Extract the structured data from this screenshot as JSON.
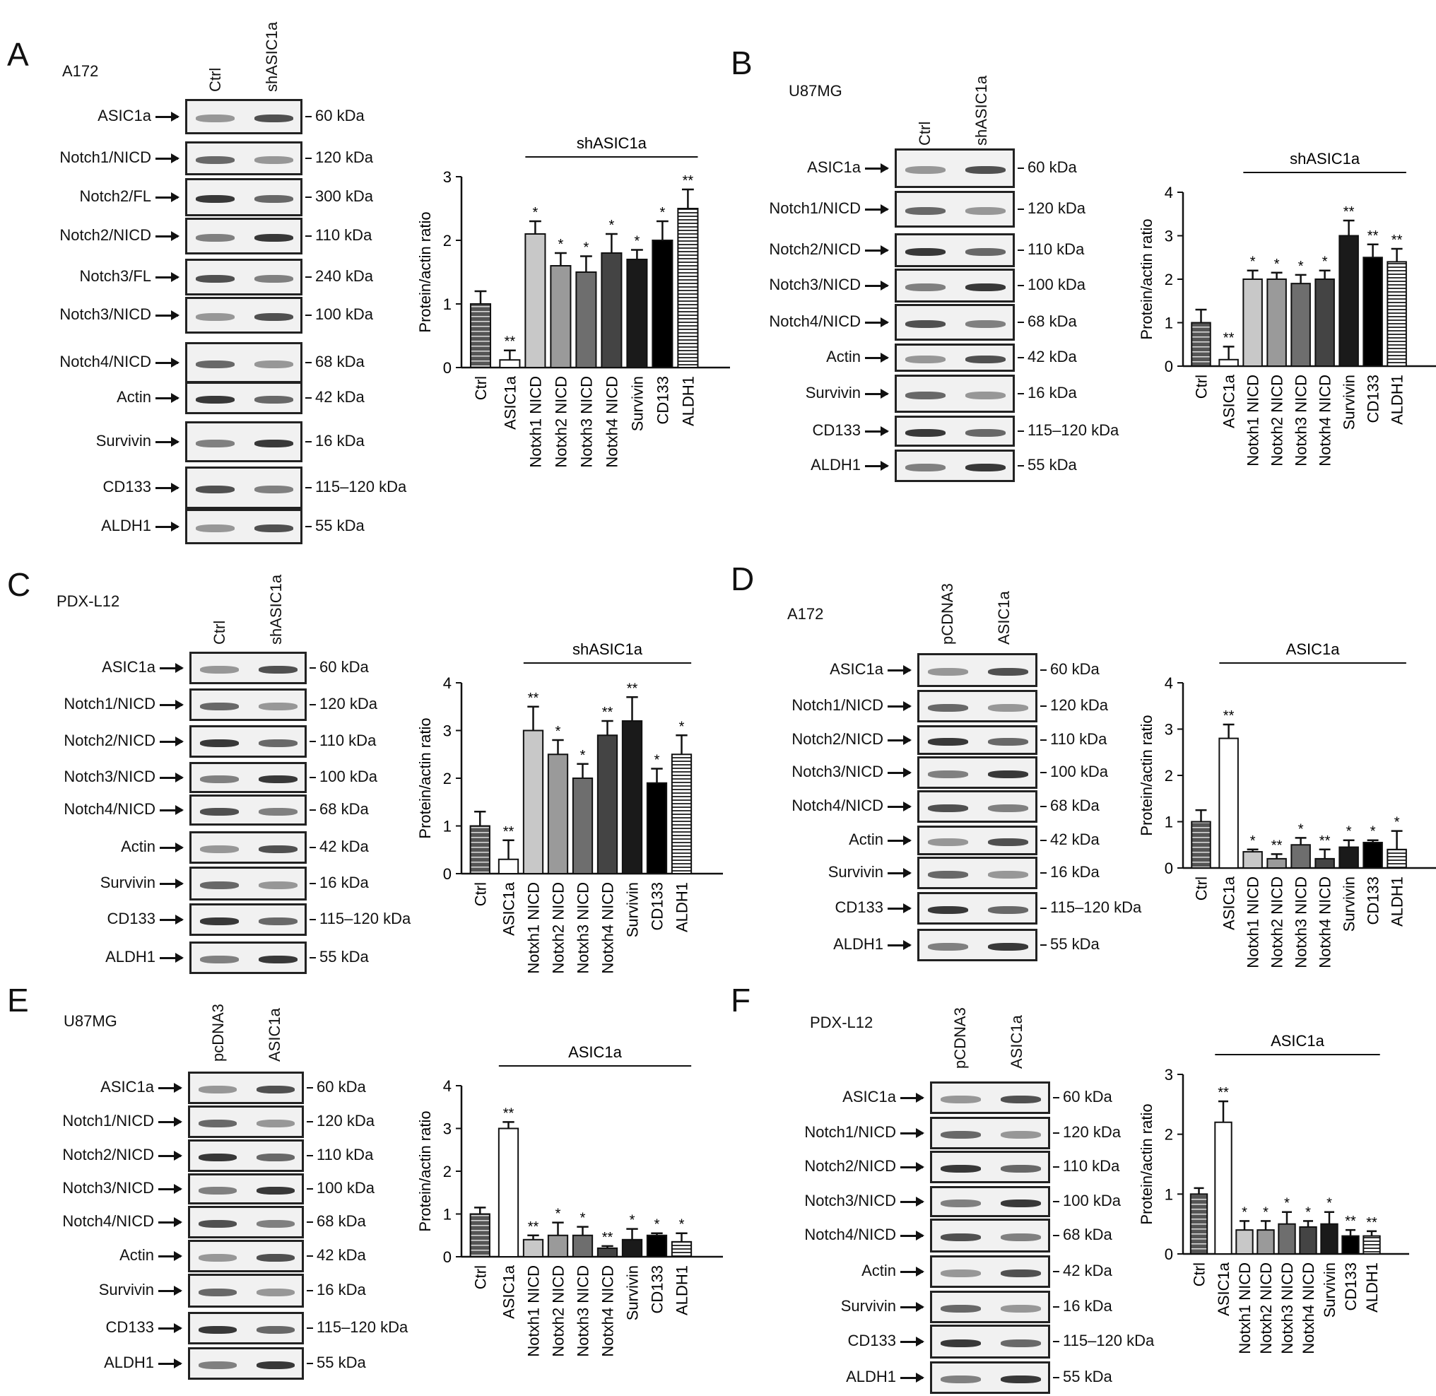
{
  "panels": [
    {
      "letter": "A",
      "cell_line": "A172",
      "lanes": [
        "Ctrl",
        "shASIC1a"
      ],
      "rows": [
        {
          "protein": "ASIC1a",
          "kda": "60 kDa",
          "arrow": true
        },
        {
          "protein": "Notch1/NICD",
          "kda": "120 kDa",
          "arrow": true
        },
        {
          "protein": "Notch2/FL",
          "kda": "300 kDa",
          "arrow": true
        },
        {
          "protein": "Notch2/NICD",
          "kda": "110 kDa",
          "arrow": true
        },
        {
          "protein": "Notch3/FL",
          "kda": "240 kDa",
          "arrow": true
        },
        {
          "protein": "Notch3/NICD",
          "kda": "100 kDa",
          "arrow": true
        },
        {
          "protein": "Notch4/NICD",
          "kda": "68 kDa",
          "arrow": true
        },
        {
          "protein": "Actin",
          "kda": "42 kDa",
          "arrow": true
        },
        {
          "protein": "Survivin",
          "kda": "16 kDa",
          "arrow": true
        },
        {
          "protein": "CD133",
          "kda": "115–120 kDa",
          "arrow": true
        },
        {
          "protein": "ALDH1",
          "kda": "55 kDa",
          "arrow": true
        }
      ]
    },
    {
      "letter": "B",
      "cell_line": "U87MG",
      "lanes": [
        "Ctrl",
        "shASIC1a"
      ],
      "rows": [
        {
          "protein": "ASIC1a",
          "kda": "60 kDa",
          "arrow": true
        },
        {
          "protein": "Notch1/NICD",
          "kda": "120 kDa",
          "arrow": true
        },
        {
          "protein": "Notch2/NICD",
          "kda": "110 kDa",
          "arrow": true
        },
        {
          "protein": "Notch3/NICD",
          "kda": "100 kDa",
          "arrow": true
        },
        {
          "protein": "Notch4/NICD",
          "kda": "68 kDa",
          "arrow": true
        },
        {
          "protein": "Actin",
          "kda": "42 kDa",
          "arrow": true
        },
        {
          "protein": "Survivin",
          "kda": "16 kDa",
          "arrow": true
        },
        {
          "protein": "CD133",
          "kda": "115–120 kDa",
          "arrow": true
        },
        {
          "protein": "ALDH1",
          "kda": "55 kDa",
          "arrow": true
        }
      ]
    },
    {
      "letter": "C",
      "cell_line": "PDX-L12",
      "lanes": [
        "Ctrl",
        "shASIC1a"
      ],
      "rows": [
        {
          "protein": "ASIC1a",
          "kda": "60 kDa",
          "arrow": true
        },
        {
          "protein": "Notch1/NICD",
          "kda": "120 kDa",
          "arrow": true
        },
        {
          "protein": "Notch2/NICD",
          "kda": "110 kDa",
          "arrow": true
        },
        {
          "protein": "Notch3/NICD",
          "kda": "100 kDa",
          "arrow": true
        },
        {
          "protein": "Notch4/NICD",
          "kda": "68 kDa",
          "arrow": true
        },
        {
          "protein": "Actin",
          "kda": "42 kDa",
          "arrow": true
        },
        {
          "protein": "Survivin",
          "kda": "16 kDa",
          "arrow": true
        },
        {
          "protein": "CD133",
          "kda": "115–120 kDa",
          "arrow": true
        },
        {
          "protein": "ALDH1",
          "kda": "55 kDa",
          "arrow": true
        }
      ]
    },
    {
      "letter": "D",
      "cell_line": "A172",
      "lanes": [
        "pCDNA3",
        "ASIC1a"
      ],
      "rows": [
        {
          "protein": "ASIC1a",
          "kda": "60 kDa",
          "arrow": true
        },
        {
          "protein": "Notch1/NICD",
          "kda": "120 kDa",
          "arrow": true
        },
        {
          "protein": "Notch2/NICD",
          "kda": "110 kDa",
          "arrow": true
        },
        {
          "protein": "Notch3/NICD",
          "kda": "100 kDa",
          "arrow": true
        },
        {
          "protein": "Notch4/NICD",
          "kda": "68 kDa",
          "arrow": true
        },
        {
          "protein": "Actin",
          "kda": "42 kDa",
          "arrow": true
        },
        {
          "protein": "Survivin",
          "kda": "16 kDa",
          "arrow": true
        },
        {
          "protein": "CD133",
          "kda": "115–120 kDa",
          "arrow": true
        },
        {
          "protein": "ALDH1",
          "kda": "55 kDa",
          "arrow": true
        }
      ]
    },
    {
      "letter": "E",
      "cell_line": "U87MG",
      "lanes": [
        "pcDNA3",
        "ASIC1a"
      ],
      "rows": [
        {
          "protein": "ASIC1a",
          "kda": "60 kDa",
          "arrow": true
        },
        {
          "protein": "Notch1/NICD",
          "kda": "120 kDa",
          "arrow": true
        },
        {
          "protein": "Notch2/NICD",
          "kda": "110 kDa",
          "arrow": true
        },
        {
          "protein": "Notch3/NICD",
          "kda": "100 kDa",
          "arrow": true
        },
        {
          "protein": "Notch4/NICD",
          "kda": "68 kDa",
          "arrow": true
        },
        {
          "protein": "Actin",
          "kda": "42 kDa",
          "arrow": true
        },
        {
          "protein": "Survivin",
          "kda": "16 kDa",
          "arrow": true
        },
        {
          "protein": "CD133",
          "kda": "115–120 kDa",
          "arrow": true
        },
        {
          "protein": "ALDH1",
          "kda": "55 kDa",
          "arrow": true
        }
      ]
    },
    {
      "letter": "F",
      "cell_line": "PDX-L12",
      "lanes": [
        "pCDNA3",
        "ASIC1a"
      ],
      "rows": [
        {
          "protein": "ASIC1a",
          "kda": "60 kDa",
          "arrow": true
        },
        {
          "protein": "Notch1/NICD",
          "kda": "120 kDa",
          "arrow": true
        },
        {
          "protein": "Notch2/NICD",
          "kda": "110 kDa",
          "arrow": true
        },
        {
          "protein": "Notch3/NICD",
          "kda": "100 kDa",
          "arrow": true
        },
        {
          "protein": "Notch4/NICD",
          "kda": "68 kDa",
          "arrow": true
        },
        {
          "protein": "Actin",
          "kda": "42 kDa",
          "arrow": true
        },
        {
          "protein": "Survivin",
          "kda": "16 kDa",
          "arrow": true
        },
        {
          "protein": "CD133",
          "kda": "115–120 kDa",
          "arrow": true
        },
        {
          "protein": "ALDH1",
          "kda": "55 kDa",
          "arrow": true
        }
      ]
    }
  ],
  "chart_data": [
    {
      "panel": "A",
      "type": "bar",
      "categories": [
        "Ctrl",
        "ASIC1a",
        "Notxh1 NICD",
        "Notxh2 NICD",
        "Notxh3 NICD",
        "Notxh4 NICD",
        "Survivin",
        "CD133",
        "ALDH1"
      ],
      "values": [
        1.0,
        0.12,
        2.1,
        1.6,
        1.5,
        1.8,
        1.7,
        2.0,
        2.5
      ],
      "errors": [
        0.2,
        0.15,
        0.2,
        0.2,
        0.25,
        0.3,
        0.15,
        0.3,
        0.3
      ],
      "significance": [
        "",
        "**",
        "*",
        "*",
        "*",
        "*",
        "*",
        "*",
        "**"
      ],
      "bracket_label": "shASIC1a",
      "bracket_from": 2,
      "bracket_to": 8,
      "ylabel": "Protein/actin ratio",
      "ylim": [
        0,
        3
      ],
      "yticks": [
        0,
        1,
        2,
        3
      ]
    },
    {
      "panel": "B",
      "type": "bar",
      "categories": [
        "Ctrl",
        "ASIC1a",
        "Notxh1 NICD",
        "Notxh2 NICD",
        "Notxh3 NICD",
        "Notxh4 NICD",
        "Survivin",
        "CD133",
        "ALDH1"
      ],
      "values": [
        1.0,
        0.15,
        2.0,
        2.0,
        1.9,
        2.0,
        3.0,
        2.5,
        2.4
      ],
      "errors": [
        0.3,
        0.3,
        0.2,
        0.15,
        0.2,
        0.2,
        0.35,
        0.3,
        0.3
      ],
      "significance": [
        "",
        "**",
        "*",
        "*",
        "*",
        "*",
        "**",
        "**",
        "**"
      ],
      "bracket_label": "shASIC1a",
      "bracket_from": 2,
      "bracket_to": 8,
      "ylabel": "Protein/actin ratio",
      "ylim": [
        0,
        4
      ],
      "yticks": [
        0,
        1,
        2,
        3,
        4
      ]
    },
    {
      "panel": "C",
      "type": "bar",
      "categories": [
        "Ctrl",
        "ASIC1a",
        "Notxh1 NICD",
        "Notxh2 NICD",
        "Notxh3 NICD",
        "Notxh4 NICD",
        "Survivin",
        "CD133",
        "ALDH1"
      ],
      "values": [
        1.0,
        0.3,
        3.0,
        2.5,
        2.0,
        2.9,
        3.2,
        1.9,
        2.5
      ],
      "errors": [
        0.3,
        0.4,
        0.5,
        0.3,
        0.3,
        0.3,
        0.5,
        0.3,
        0.4
      ],
      "significance": [
        "",
        "**",
        "**",
        "*",
        "*",
        "**",
        "**",
        "*",
        "*"
      ],
      "bracket_label": "shASIC1a",
      "bracket_from": 2,
      "bracket_to": 8,
      "ylabel": "Protein/actin ratio",
      "ylim": [
        0,
        4
      ],
      "yticks": [
        0,
        1,
        2,
        3,
        4
      ]
    },
    {
      "panel": "D",
      "type": "bar",
      "categories": [
        "Ctrl",
        "ASIC1a",
        "Notxh1 NICD",
        "Notxh2 NICD",
        "Notxh3 NICD",
        "Notxh4 NICD",
        "Survivin",
        "CD133",
        "ALDH1"
      ],
      "values": [
        1.0,
        2.8,
        0.35,
        0.2,
        0.5,
        0.2,
        0.45,
        0.55,
        0.4
      ],
      "errors": [
        0.25,
        0.3,
        0.05,
        0.1,
        0.15,
        0.2,
        0.15,
        0.05,
        0.4
      ],
      "significance": [
        "",
        "**",
        "*",
        "**",
        "*",
        "**",
        "*",
        "*",
        "*"
      ],
      "bracket_label": "ASIC1a",
      "bracket_from": 1,
      "bracket_to": 8,
      "ylabel": "Protein/actin ratio",
      "ylim": [
        0,
        4
      ],
      "yticks": [
        0,
        1,
        2,
        3,
        4
      ]
    },
    {
      "panel": "E",
      "type": "bar",
      "categories": [
        "Ctrl",
        "ASIC1a",
        "Notxh1 NICD",
        "Notxh2 NICD",
        "Notxh3 NICD",
        "Notxh4 NICD",
        "Survivin",
        "CD133",
        "ALDH1"
      ],
      "values": [
        1.0,
        3.0,
        0.4,
        0.5,
        0.5,
        0.2,
        0.4,
        0.5,
        0.35
      ],
      "errors": [
        0.15,
        0.15,
        0.1,
        0.3,
        0.2,
        0.05,
        0.25,
        0.05,
        0.2
      ],
      "significance": [
        "",
        "**",
        "**",
        "*",
        "*",
        "**",
        "*",
        "*",
        "*"
      ],
      "bracket_label": "ASIC1a",
      "bracket_from": 1,
      "bracket_to": 8,
      "ylabel": "Protein/actin ratio",
      "ylim": [
        0,
        4
      ],
      "yticks": [
        0,
        1,
        2,
        3,
        4
      ]
    },
    {
      "panel": "F",
      "type": "bar",
      "categories": [
        "Ctrl",
        "ASIC1a",
        "Notxh1 NICD",
        "Notxh2 NICD",
        "Notxh3 NICD",
        "Notxh4 NICD",
        "Survivin",
        "CD133",
        "ALDH1"
      ],
      "values": [
        1.0,
        2.2,
        0.4,
        0.4,
        0.5,
        0.45,
        0.5,
        0.3,
        0.3
      ],
      "errors": [
        0.1,
        0.35,
        0.15,
        0.15,
        0.2,
        0.1,
        0.2,
        0.1,
        0.08
      ],
      "significance": [
        "",
        "**",
        "*",
        "*",
        "*",
        "*",
        "*",
        "**",
        "**"
      ],
      "bracket_label": "ASIC1a",
      "bracket_from": 1,
      "bracket_to": 8,
      "ylabel": "Protein/actin ratio",
      "ylim": [
        0,
        3
      ],
      "yticks": [
        0,
        1,
        2,
        3
      ]
    }
  ]
}
